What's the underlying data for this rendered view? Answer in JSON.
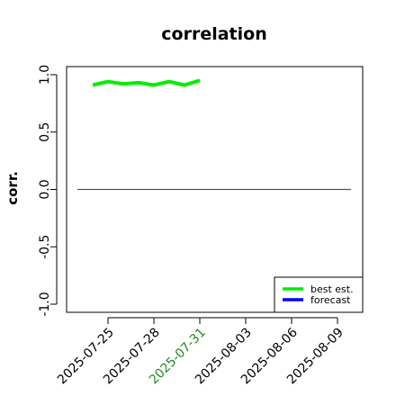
{
  "chart_data": {
    "type": "line",
    "title": "correlation",
    "ylabel": "corr.",
    "xlabel": "",
    "ylim": [
      -1.0,
      1.0
    ],
    "yticks": [
      "-1.0",
      "-0.5",
      "0.0",
      "0.5",
      "1.0"
    ],
    "ytick_values": [
      -1.0,
      -0.5,
      0.0,
      0.5,
      1.0
    ],
    "xlim": [
      "2025-07-23",
      "2025-08-10"
    ],
    "x_ticks": [
      {
        "label": "2025-07-25",
        "date": "2025-07-25",
        "color": "#000000"
      },
      {
        "label": "2025-07-28",
        "date": "2025-07-28",
        "color": "#000000"
      },
      {
        "label": "2025-07-31",
        "date": "2025-07-31",
        "color": "#228B22"
      },
      {
        "label": "2025-08-03",
        "date": "2025-08-03",
        "color": "#000000"
      },
      {
        "label": "2025-08-06",
        "date": "2025-08-06",
        "color": "#000000"
      },
      {
        "label": "2025-08-09",
        "date": "2025-08-09",
        "color": "#000000"
      }
    ],
    "reference_line": {
      "y": 0.0,
      "x_from": "2025-07-23",
      "x_to": "2025-08-10",
      "color": "#555555"
    },
    "series": [
      {
        "name": "best est.",
        "color": "#00ee00",
        "points": [
          {
            "x": "2025-07-24",
            "y": 0.91
          },
          {
            "x": "2025-07-25",
            "y": 0.94
          },
          {
            "x": "2025-07-26",
            "y": 0.92
          },
          {
            "x": "2025-07-27",
            "y": 0.93
          },
          {
            "x": "2025-07-28",
            "y": 0.91
          },
          {
            "x": "2025-07-29",
            "y": 0.94
          },
          {
            "x": "2025-07-30",
            "y": 0.91
          },
          {
            "x": "2025-07-31",
            "y": 0.95
          }
        ]
      },
      {
        "name": "forecast",
        "color": "#0000ff",
        "points": []
      }
    ],
    "legend": {
      "position": "bottom-right",
      "entries": [
        {
          "label": "best est.",
          "color": "#00ee00"
        },
        {
          "label": "forecast",
          "color": "#0000ff"
        }
      ]
    },
    "grid": false
  }
}
